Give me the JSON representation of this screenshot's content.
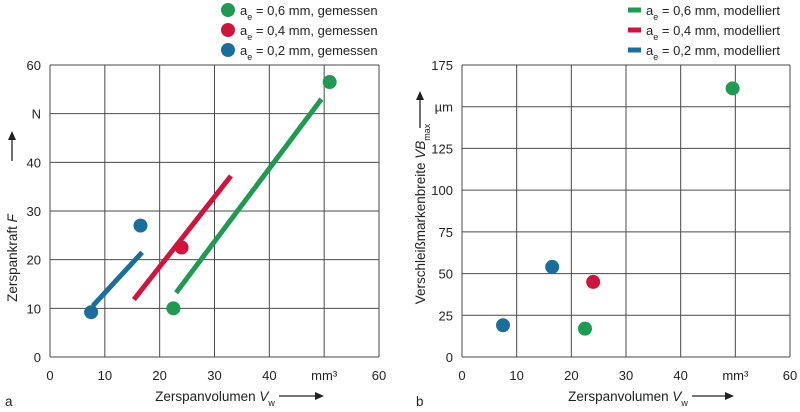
{
  "chart_data": [
    {
      "type": "scatter",
      "panel_label": "a",
      "xlabel": "Zerspanvolumen",
      "xlabel_symbol": "V",
      "xlabel_sub": "w",
      "ylabel": "Zerspankraft",
      "ylabel_symbol": "F",
      "x_unit_tick": "mm³",
      "y_unit_tick": "N",
      "xlim": [
        0,
        60
      ],
      "ylim": [
        0,
        60
      ],
      "xticks": [
        "0",
        "10",
        "20",
        "30",
        "40",
        "",
        "60"
      ],
      "yticks": [
        "0",
        "10",
        "20",
        "30",
        "40",
        "",
        "60"
      ],
      "grid": true,
      "legend_position": "top-right",
      "legend": [
        {
          "prefix": "a",
          "sub": "e",
          "text": " = 0,6 mm, gemessen",
          "color": "#1f9a52",
          "marker": "circle"
        },
        {
          "prefix": "a",
          "sub": "e",
          "text": " = 0,4 mm, gemessen",
          "color": "#d0153d",
          "marker": "circle"
        },
        {
          "prefix": "a",
          "sub": "e",
          "text": " = 0,2 mm, gemessen",
          "color": "#1a6e9c",
          "marker": "circle"
        }
      ],
      "series": [
        {
          "color": "#1f9a52",
          "type": "scatter",
          "points": [
            [
              22.5,
              10
            ],
            [
              51,
              56.5
            ]
          ]
        },
        {
          "color": "#d0153d",
          "type": "scatter",
          "points": [
            [
              24,
              22.5
            ]
          ]
        },
        {
          "color": "#1a6e9c",
          "type": "scatter",
          "points": [
            [
              7.5,
              9.2
            ],
            [
              16.5,
              27
            ]
          ]
        },
        {
          "color": "#1f9a52",
          "type": "line",
          "points": [
            [
              23,
              13.2
            ],
            [
              49.5,
              53
            ]
          ]
        },
        {
          "color": "#d0153d",
          "type": "line",
          "points": [
            [
              15.3,
              11.8
            ],
            [
              33,
              37.2
            ]
          ]
        },
        {
          "color": "#1a6e9c",
          "type": "line",
          "points": [
            [
              7.8,
              10.5
            ],
            [
              16.8,
              21.5
            ]
          ]
        }
      ]
    },
    {
      "type": "scatter",
      "panel_label": "b",
      "xlabel": "Zerspanvolumen",
      "xlabel_symbol": "V",
      "xlabel_sub": "w",
      "ylabel": "Verschleißmarkenbreite",
      "ylabel_symbol": "VB",
      "ylabel_sub": "max",
      "x_unit_tick": "mm³",
      "y_unit_tick": "µm",
      "xlim": [
        0,
        60
      ],
      "ylim": [
        0,
        175
      ],
      "xticks": [
        "0",
        "10",
        "20",
        "30",
        "40",
        "",
        "60"
      ],
      "yticks": [
        "0",
        "25",
        "50",
        "75",
        "100",
        "125",
        "",
        "175"
      ],
      "grid": true,
      "legend_position": "top-right",
      "legend": [
        {
          "prefix": "a",
          "sub": "e",
          "text": " = 0,6 mm, modelliert",
          "color": "#1f9a52",
          "marker": "line"
        },
        {
          "prefix": "a",
          "sub": "e",
          "text": " = 0,4 mm, modelliert",
          "color": "#d0153d",
          "marker": "line"
        },
        {
          "prefix": "a",
          "sub": "e",
          "text": " = 0,2 mm, modelliert",
          "color": "#1a6e9c",
          "marker": "line"
        }
      ],
      "series": [
        {
          "color": "#1f9a52",
          "type": "scatter",
          "points": [
            [
              22.5,
              17
            ],
            [
              49.5,
              161
            ]
          ]
        },
        {
          "color": "#d0153d",
          "type": "scatter",
          "points": [
            [
              24,
              45
            ]
          ]
        },
        {
          "color": "#1a6e9c",
          "type": "scatter",
          "points": [
            [
              7.5,
              19
            ],
            [
              16.5,
              54
            ]
          ]
        }
      ]
    }
  ]
}
